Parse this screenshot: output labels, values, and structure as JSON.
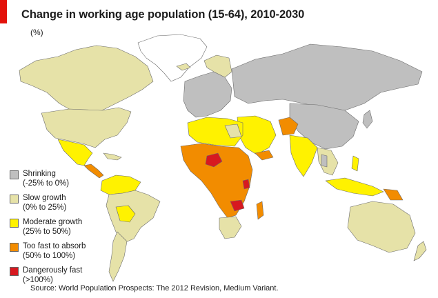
{
  "title": "Change in working age population (15-64), 2010-2030",
  "subtitle": "(%)",
  "source": "Source: World Population Prospects: The 2012 Revision, Medium Variant.",
  "colors": {
    "shrinking": "#bfbfbf",
    "slow": "#e6e2a8",
    "moderate": "#fff200",
    "too_fast": "#f28c00",
    "dangerous": "#d71920",
    "no_data": "#ffffff",
    "accent": "#e3120b"
  },
  "legend": [
    {
      "label": "Shrinking",
      "range": "(-25% to 0%)",
      "color": "#bfbfbf"
    },
    {
      "label": "Slow growth",
      "range": "(0% to 25%)",
      "color": "#e6e2a8"
    },
    {
      "label": "Moderate growth",
      "range": "(25% to 50%)",
      "color": "#fff200"
    },
    {
      "label": "Too fast to absorb",
      "range": "(50% to 100%)",
      "color": "#f28c00"
    },
    {
      "label": "Dangerously fast",
      "range": "(>100%)",
      "color": "#d71920"
    }
  ]
}
